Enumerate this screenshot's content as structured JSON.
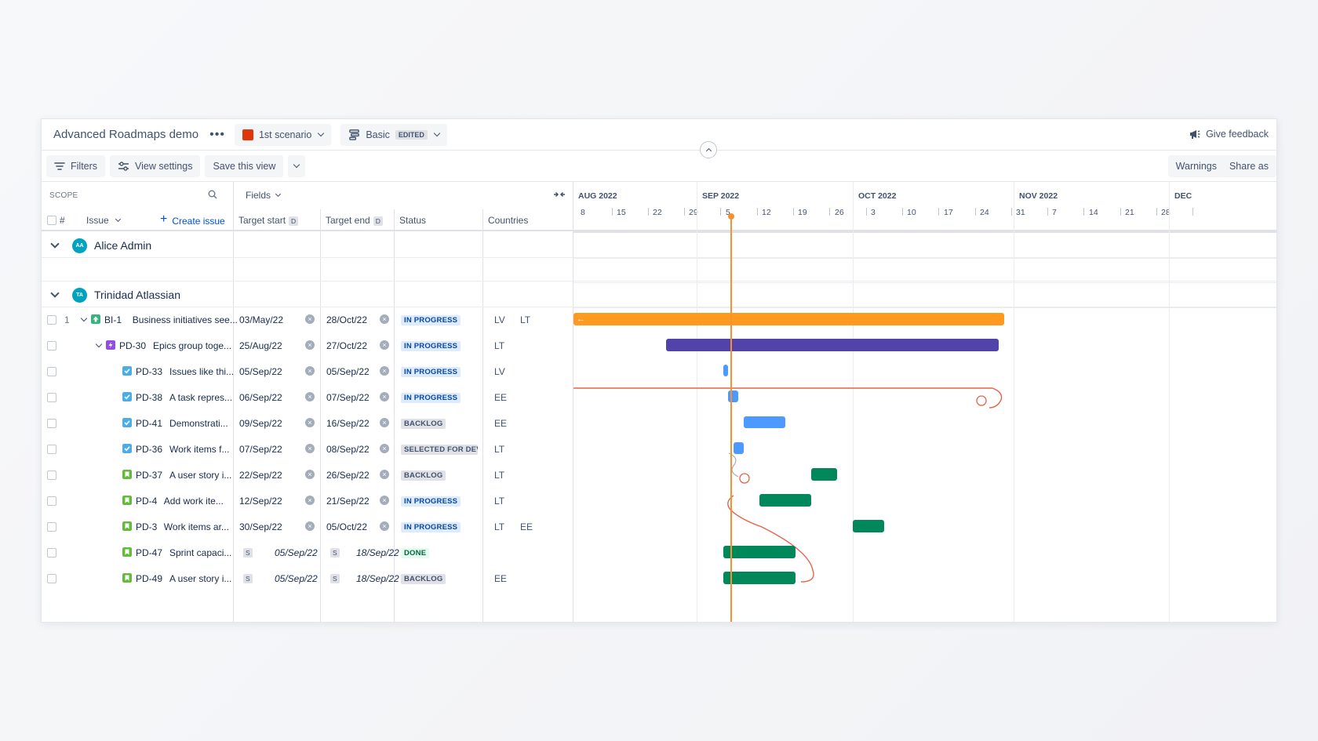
{
  "topbar": {
    "plan_title": "Advanced Roadmaps demo",
    "more_icon": "more-horizontal-icon",
    "scenario": "1st scenario",
    "scenario_color": "#de350b",
    "view_name": "Basic",
    "view_badge": "EDITED",
    "feedback": "Give feedback"
  },
  "toolbar": {
    "filters": "Filters",
    "view_settings": "View settings",
    "save_view": "Save this view",
    "warnings": "Warnings",
    "share": "Share as"
  },
  "table": {
    "scope": "SCOPE",
    "fields": "Fields",
    "col_num": "#",
    "col_issue": "Issue",
    "create_issue": "Create issue",
    "col_target_start": "Target start",
    "col_target_end": "Target end",
    "col_status": "Status",
    "col_countries": "Countries",
    "date_badge": "D"
  },
  "groups": [
    {
      "name": "Alice Admin",
      "initials": "AA"
    },
    {
      "name": "Trinidad Atlassian",
      "initials": "TA"
    }
  ],
  "rows": [
    {
      "num": "1",
      "key": "BI-1",
      "summary": "Business initiatives see...",
      "start": "03/May/22",
      "end": "28/Oct/22",
      "status": "IN PROGRESS",
      "c1": "LV",
      "c2": "LT"
    },
    {
      "num": "",
      "key": "PD-30",
      "summary": "Epics group toge...",
      "start": "25/Aug/22",
      "end": "27/Oct/22",
      "status": "IN PROGRESS",
      "c1": "LT",
      "c2": ""
    },
    {
      "num": "",
      "key": "PD-33",
      "summary": "Issues like thi...",
      "start": "05/Sep/22",
      "end": "05/Sep/22",
      "status": "IN PROGRESS",
      "c1": "LV",
      "c2": ""
    },
    {
      "num": "",
      "key": "PD-38",
      "summary": "A task repres...",
      "start": "06/Sep/22",
      "end": "07/Sep/22",
      "status": "IN PROGRESS",
      "c1": "EE",
      "c2": ""
    },
    {
      "num": "",
      "key": "PD-41",
      "summary": "Demonstrati...",
      "start": "09/Sep/22",
      "end": "16/Sep/22",
      "status": "BACKLOG",
      "c1": "EE",
      "c2": ""
    },
    {
      "num": "",
      "key": "PD-36",
      "summary": "Work items f...",
      "start": "07/Sep/22",
      "end": "08/Sep/22",
      "status": "SELECTED FOR DEVELOPMENT",
      "c1": "LT",
      "c2": ""
    },
    {
      "num": "",
      "key": "PD-37",
      "summary": "A user story i...",
      "start": "22/Sep/22",
      "end": "26/Sep/22",
      "status": "BACKLOG",
      "c1": "LT",
      "c2": ""
    },
    {
      "num": "",
      "key": "PD-4",
      "summary": "Add work ite...",
      "start": "12/Sep/22",
      "end": "21/Sep/22",
      "status": "IN PROGRESS",
      "c1": "LT",
      "c2": ""
    },
    {
      "num": "",
      "key": "PD-3",
      "summary": "Work items ar...",
      "start": "30/Sep/22",
      "end": "05/Oct/22",
      "status": "IN PROGRESS",
      "c1": "LT",
      "c2": "EE"
    },
    {
      "num": "",
      "key": "PD-47",
      "summary": "Sprint capaci...",
      "start": "05/Sep/22",
      "end": "18/Sep/22",
      "status": "DONE",
      "c1": "",
      "c2": "",
      "sprint_badge": "S"
    },
    {
      "num": "",
      "key": "PD-49",
      "summary": "A user story i...",
      "start": "05/Sep/22",
      "end": "18/Sep/22",
      "status": "BACKLOG",
      "c1": "EE",
      "c2": "",
      "sprint_badge": "S"
    }
  ],
  "timeline": {
    "months": [
      "AUG 2022",
      "SEP 2022",
      "OCT 2022",
      "NOV 2022",
      "DEC"
    ],
    "ticks": [
      "8",
      "15",
      "22",
      "29",
      "5",
      "12",
      "19",
      "26",
      "3",
      "10",
      "17",
      "24",
      "31",
      "7",
      "14",
      "21",
      "28"
    ]
  },
  "colors": {
    "initiative": "#ff991f",
    "epic": "#5243aa",
    "task": "#4c9aff",
    "story": "#00875a",
    "today": "#f79232",
    "dependency": "#e5634a"
  }
}
